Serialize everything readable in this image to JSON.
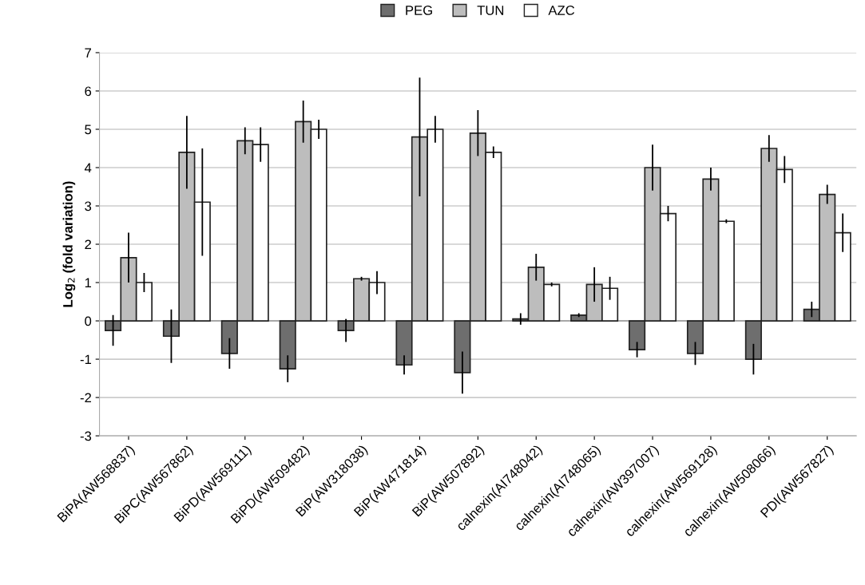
{
  "chart_data": {
    "type": "bar",
    "ylabel": "Log$_{2}$ (fold variation)",
    "categories": [
      "BiPA(AW568837)",
      "BiPC(AW567862)",
      "BiPD(AW569111)",
      "BiPD(AW509482)",
      "BiP(AW318038)",
      "BiP(AW471814)",
      "BiP(AW507892)",
      "calnexin(AI748042)",
      "calnexin(AI748065)",
      "calnexin(AW397007)",
      "calnexin(AW569128)",
      "calnexin(AW508066)",
      "PDI(AW567827)"
    ],
    "series": [
      {
        "name": "PEG",
        "color": "#6e6e6e",
        "values": [
          -0.25,
          -0.4,
          -0.85,
          -1.25,
          -0.25,
          -1.15,
          -1.35,
          0.05,
          0.15,
          -0.75,
          -0.85,
          -1.0,
          0.3
        ],
        "errors": [
          0.4,
          0.7,
          0.4,
          0.35,
          0.3,
          0.25,
          0.55,
          0.15,
          0.05,
          0.2,
          0.3,
          0.4,
          0.2
        ]
      },
      {
        "name": "TUN",
        "color": "#bdbdbd",
        "values": [
          1.65,
          4.4,
          4.7,
          5.2,
          1.1,
          4.8,
          4.9,
          1.4,
          0.95,
          4.0,
          3.7,
          4.5,
          3.3
        ],
        "errors": [
          0.65,
          0.95,
          0.35,
          0.55,
          0.05,
          1.55,
          0.6,
          0.35,
          0.45,
          0.6,
          0.3,
          0.35,
          0.25
        ]
      },
      {
        "name": "AZC",
        "color": "#ffffff",
        "values": [
          1.0,
          3.1,
          4.6,
          5.0,
          1.0,
          5.0,
          4.4,
          0.95,
          0.85,
          2.8,
          2.6,
          3.95,
          2.3
        ],
        "errors": [
          0.25,
          1.4,
          0.45,
          0.25,
          0.3,
          0.35,
          0.15,
          0.05,
          0.3,
          0.2,
          0.05,
          0.35,
          0.5
        ]
      }
    ],
    "ylim": [
      -3,
      7
    ],
    "yticks": [
      -3,
      -2,
      -1,
      0,
      1,
      2,
      3,
      4,
      5,
      6,
      7
    ],
    "grid": "y",
    "legend": "top"
  }
}
